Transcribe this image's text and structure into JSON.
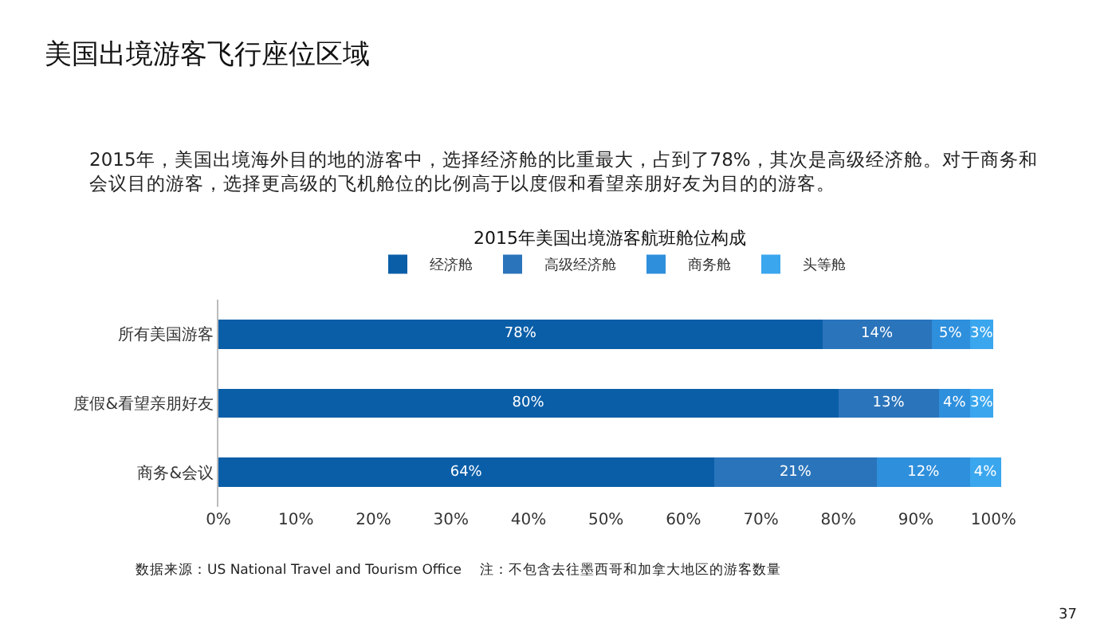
{
  "chart_data": {
    "type": "bar",
    "orientation": "horizontal",
    "stacked": true,
    "title": "美国出境游客飞行座位区域",
    "subtitle": "2015年，美国出境海外目的地的游客中，选择经济舱的比重最大，占到了78%，其次是高级经济舱。对于商务和会议目的游客，选择更高级的飞机舱位的比例高于以度假和看望亲朋好友为目的的游客。",
    "annotations": [
      "2015年美国出境游客航班舱位构成",
      "数据来源：US National Travel and Tourism Office",
      "注：不包含去往墨西哥和加拿大地区的游客数量",
      "37"
    ],
    "categories": [
      "所有美国游客",
      "度假&看望亲朋好友",
      "商务&会议"
    ],
    "series": [
      {
        "name": "经济舱",
        "color": "#0a5ea8",
        "values": [
          78,
          80,
          64
        ],
        "value_labels": [
          "78%",
          "80%",
          "64%"
        ]
      },
      {
        "name": "高级经济舱",
        "color": "#2a74bb",
        "values": [
          14,
          13,
          21
        ],
        "value_labels": [
          "14%",
          "13%",
          "21%"
        ]
      },
      {
        "name": "商务舱",
        "color": "#2e8fdc",
        "values": [
          5,
          4,
          12
        ],
        "value_labels": [
          "5%",
          "4%",
          "12%"
        ]
      },
      {
        "name": "头等舱",
        "color": "#3aa6ee",
        "values": [
          3,
          3,
          4
        ],
        "value_labels": [
          "3%",
          "3%",
          "4%"
        ]
      }
    ],
    "xlim": [
      0,
      101
    ],
    "xticks": [
      {
        "value": 0,
        "label": "0%"
      },
      {
        "value": 10,
        "label": "10%"
      },
      {
        "value": 20,
        "label": "20%"
      },
      {
        "value": 30,
        "label": "30%"
      },
      {
        "value": 40,
        "label": "40%"
      },
      {
        "value": 50,
        "label": "50%"
      },
      {
        "value": 60,
        "label": "60%"
      },
      {
        "value": 70,
        "label": "70%"
      },
      {
        "value": 80,
        "label": "80%"
      },
      {
        "value": 90,
        "label": "90%"
      },
      {
        "value": 100,
        "label": "100%"
      }
    ],
    "grid": false,
    "legend": "top"
  }
}
